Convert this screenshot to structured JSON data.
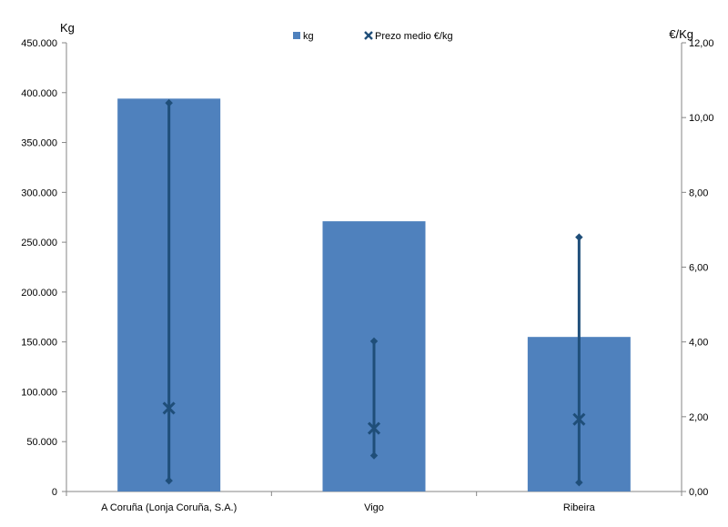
{
  "chart_data": {
    "type": "bar",
    "categories": [
      "A Coruña (Lonja Coruña, S.A.)",
      "Vigo",
      "Ribeira"
    ],
    "series": [
      {
        "name": "kg",
        "axis": "left",
        "values": [
          394000,
          271000,
          155000
        ]
      },
      {
        "name": "Prezo medio €/kg",
        "axis": "right",
        "marker": "x",
        "values": [
          2.23,
          1.69,
          1.93
        ],
        "min": [
          0.29,
          0.96,
          0.24
        ],
        "max": [
          10.39,
          4.02,
          6.8
        ]
      }
    ],
    "y_left": {
      "unit_label": "Kg",
      "range": [
        0,
        450000
      ],
      "ticks": [
        "0",
        "50.000",
        "100.000",
        "150.000",
        "200.000",
        "250.000",
        "300.000",
        "350.000",
        "400.000",
        "450.000"
      ]
    },
    "y_right": {
      "unit_label": "€/Kg",
      "range": [
        0,
        12
      ],
      "ticks": [
        "0,00",
        "2,00",
        "4,00",
        "6,00",
        "8,00",
        "10,00",
        "12,00"
      ]
    },
    "grid": false,
    "legend_position": "top-center",
    "colors": {
      "bar": "#4f81bd",
      "price": "#1f4e79"
    }
  }
}
